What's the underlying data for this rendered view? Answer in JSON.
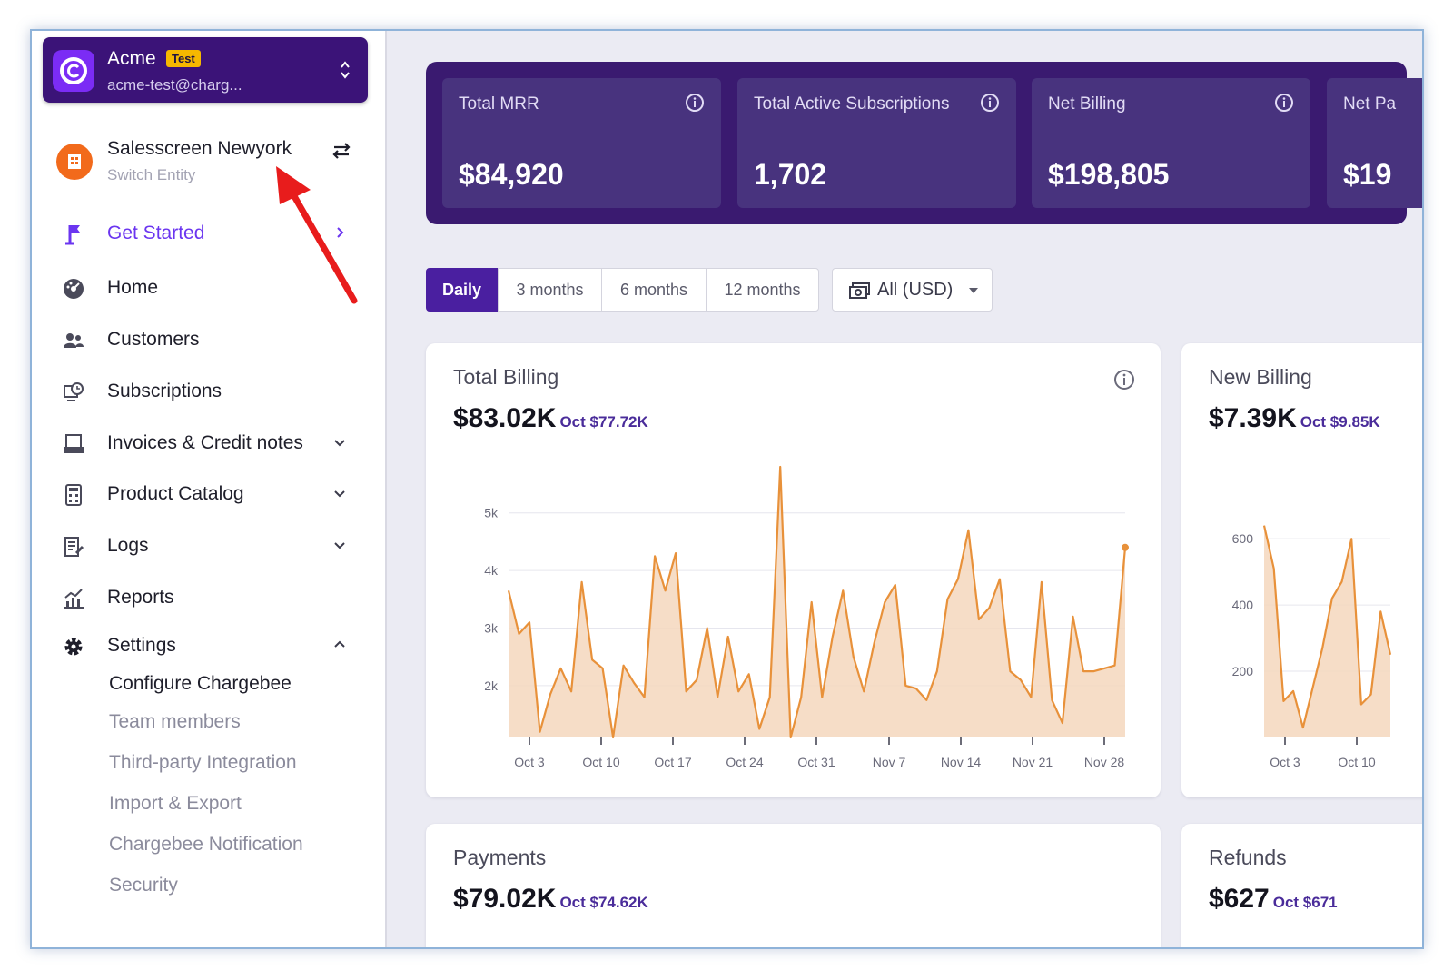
{
  "account": {
    "name": "Acme",
    "badge": "Test",
    "email": "acme-test@charg..."
  },
  "entity": {
    "name": "Salesscreen Newyork",
    "subtitle": "Switch Entity"
  },
  "nav": {
    "get_started": "Get Started",
    "home": "Home",
    "customers": "Customers",
    "subscriptions": "Subscriptions",
    "invoices": "Invoices & Credit notes",
    "catalog": "Product Catalog",
    "logs": "Logs",
    "reports": "Reports",
    "settings": "Settings",
    "settings_items": [
      "Configure Chargebee",
      "Team members",
      "Third-party Integration",
      "Import & Export",
      "Chargebee Notification",
      "Security"
    ]
  },
  "kpis": [
    {
      "title": "Total MRR",
      "value": "$84,920"
    },
    {
      "title": "Total Active Subscriptions",
      "value": "1,702"
    },
    {
      "title": "Net Billing",
      "value": "$198,805"
    },
    {
      "title": "Net Pa",
      "value": "$19"
    }
  ],
  "periods": [
    "Daily",
    "3 months",
    "6 months",
    "12 months"
  ],
  "currency": "All (USD)",
  "cards": {
    "total_billing": {
      "title": "Total Billing",
      "value": "$83.02K",
      "prev": "Oct $77.72K"
    },
    "new_billing": {
      "title": "New Billing",
      "value": "$7.39K",
      "prev": "Oct $9.85K"
    },
    "payments": {
      "title": "Payments",
      "value": "$79.02K",
      "prev": "Oct $74.62K"
    },
    "refunds": {
      "title": "Refunds",
      "value": "$627",
      "prev": "Oct $671"
    }
  },
  "colors": {
    "brand": "#3a1a70",
    "accent": "#6b35f0",
    "series": "#e8913a",
    "fill": "#f5d7bd"
  },
  "chart_data": [
    {
      "type": "area",
      "title": "Total Billing",
      "x_ticks": [
        "Oct 3",
        "Oct 10",
        "Oct 17",
        "Oct 24",
        "Oct 31",
        "Nov 7",
        "Nov 14",
        "Nov 21",
        "Nov 28"
      ],
      "y_ticks": [
        "2k",
        "3k",
        "4k",
        "5k"
      ],
      "ylim": [
        1100,
        5800
      ],
      "values": [
        3650,
        2900,
        3100,
        1200,
        1850,
        2300,
        1900,
        3800,
        2450,
        2300,
        1100,
        2350,
        2050,
        1800,
        4250,
        3650,
        4300,
        1900,
        2100,
        3000,
        1800,
        2850,
        1900,
        2200,
        1250,
        1800,
        5800,
        1100,
        1800,
        3450,
        1800,
        2850,
        3650,
        2500,
        1900,
        2750,
        3450,
        3750,
        2000,
        1950,
        1750,
        2250,
        3500,
        3850,
        4700,
        3150,
        3350,
        3850,
        2250,
        2100,
        1800,
        3800,
        1750,
        1350,
        3200,
        2250,
        2250,
        2300,
        2350,
        4400
      ]
    },
    {
      "type": "area",
      "title": "New Billing",
      "x_ticks": [
        "Oct 3",
        "Oct 10"
      ],
      "y_ticks": [
        "200",
        "400",
        "600"
      ],
      "ylim": [
        0,
        680
      ],
      "values": [
        640,
        510,
        110,
        140,
        30,
        150,
        270,
        420,
        470,
        600,
        100,
        130,
        380,
        250
      ]
    }
  ]
}
